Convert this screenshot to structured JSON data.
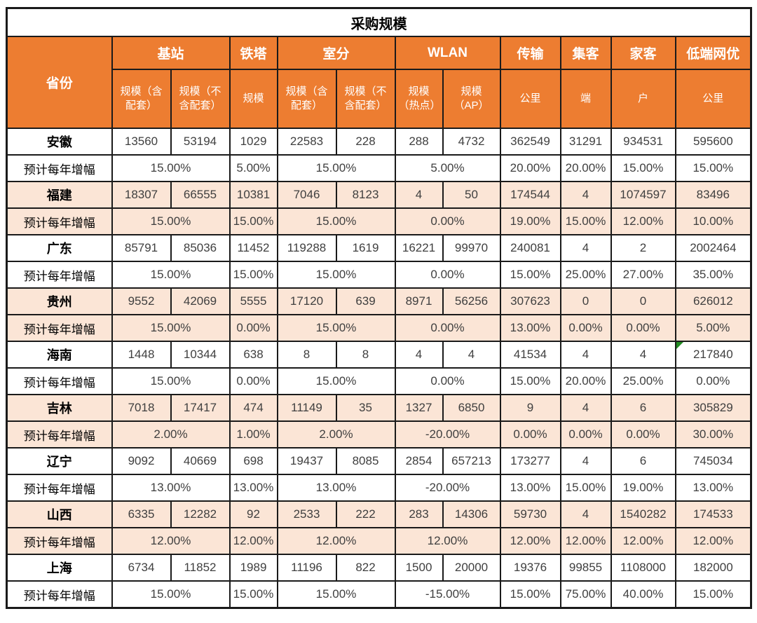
{
  "title": "采购规模",
  "growth_label": "预计每年增幅",
  "colors": {
    "header_bg": "#ED7D31",
    "band_bg": "#FBE5D6",
    "white_bg": "#FFFFFF",
    "border_col": "#1a1a1a",
    "num_col": "#3F3F3F",
    "marker_green": "#228B22"
  },
  "header": {
    "province_label": "省份",
    "groups": [
      {
        "label": "基站",
        "sub": [
          "规模（含配套）",
          "规模（不含配套）"
        ]
      },
      {
        "label": "铁塔",
        "sub": [
          "规模"
        ]
      },
      {
        "label": "室分",
        "sub": [
          "规模（含配套）",
          "规模（不含配套）"
        ]
      },
      {
        "label": "WLAN",
        "sub": [
          "规模（热点）",
          "规模（AP）"
        ]
      },
      {
        "label": "传输",
        "sub": [
          "公里"
        ]
      },
      {
        "label": "集客",
        "sub": [
          "端"
        ]
      },
      {
        "label": "家客",
        "sub": [
          "户"
        ]
      },
      {
        "label": "低端网优",
        "sub": [
          "公里"
        ]
      }
    ]
  },
  "growth_spans": [
    2,
    1,
    2,
    2,
    1,
    1,
    1,
    1
  ],
  "marker": {
    "province_index": 4,
    "value_index": 10
  },
  "provinces": [
    {
      "name": "安徽",
      "values": [
        "13560",
        "53194",
        "1029",
        "22583",
        "228",
        "288",
        "4732",
        "362549",
        "31291",
        "934531",
        "595600"
      ],
      "growth": [
        "15.00%",
        "5.00%",
        "15.00%",
        "5.00%",
        "20.00%",
        "20.00%",
        "15.00%",
        "15.00%"
      ]
    },
    {
      "name": "福建",
      "values": [
        "18307",
        "66555",
        "10381",
        "7046",
        "8123",
        "4",
        "50",
        "174544",
        "4",
        "1074597",
        "83496"
      ],
      "growth": [
        "15.00%",
        "15.00%",
        "15.00%",
        "0.00%",
        "19.00%",
        "15.00%",
        "12.00%",
        "10.00%"
      ]
    },
    {
      "name": "广东",
      "values": [
        "85791",
        "85036",
        "11452",
        "119288",
        "1619",
        "16221",
        "99970",
        "240081",
        "4",
        "2",
        "2002464"
      ],
      "growth": [
        "15.00%",
        "15.00%",
        "15.00%",
        "0.00%",
        "15.00%",
        "25.00%",
        "27.00%",
        "35.00%"
      ]
    },
    {
      "name": "贵州",
      "values": [
        "9552",
        "42069",
        "5555",
        "17120",
        "639",
        "8971",
        "56256",
        "307623",
        "0",
        "0",
        "626012"
      ],
      "growth": [
        "15.00%",
        "0.00%",
        "15.00%",
        "0.00%",
        "13.00%",
        "0.00%",
        "0.00%",
        "5.00%"
      ]
    },
    {
      "name": "海南",
      "values": [
        "1448",
        "10344",
        "638",
        "8",
        "8",
        "4",
        "4",
        "41534",
        "4",
        "4",
        "217840"
      ],
      "growth": [
        "15.00%",
        "0.00%",
        "15.00%",
        "0.00%",
        "15.00%",
        "20.00%",
        "25.00%",
        "0.00%"
      ]
    },
    {
      "name": "吉林",
      "values": [
        "7018",
        "17417",
        "474",
        "11149",
        "35",
        "1327",
        "6850",
        "9",
        "4",
        "6",
        "305829"
      ],
      "growth": [
        "2.00%",
        "1.00%",
        "2.00%",
        "-20.00%",
        "0.00%",
        "0.00%",
        "0.00%",
        "30.00%"
      ]
    },
    {
      "name": "辽宁",
      "values": [
        "9092",
        "40669",
        "698",
        "19437",
        "8085",
        "2854",
        "657213",
        "173277",
        "4",
        "6",
        "745034"
      ],
      "growth": [
        "13.00%",
        "13.00%",
        "13.00%",
        "-20.00%",
        "13.00%",
        "15.00%",
        "19.00%",
        "13.00%"
      ]
    },
    {
      "name": "山西",
      "values": [
        "6335",
        "12282",
        "92",
        "2533",
        "222",
        "283",
        "14306",
        "59730",
        "4",
        "1540282",
        "174533"
      ],
      "growth": [
        "12.00%",
        "12.00%",
        "12.00%",
        "12.00%",
        "12.00%",
        "12.00%",
        "12.00%",
        "12.00%"
      ]
    },
    {
      "name": "上海",
      "values": [
        "6734",
        "11852",
        "1989",
        "11196",
        "822",
        "1500",
        "20000",
        "19376",
        "99855",
        "1108000",
        "182000"
      ],
      "growth": [
        "15.00%",
        "15.00%",
        "15.00%",
        "-15.00%",
        "15.00%",
        "75.00%",
        "40.00%",
        "15.00%"
      ]
    }
  ]
}
